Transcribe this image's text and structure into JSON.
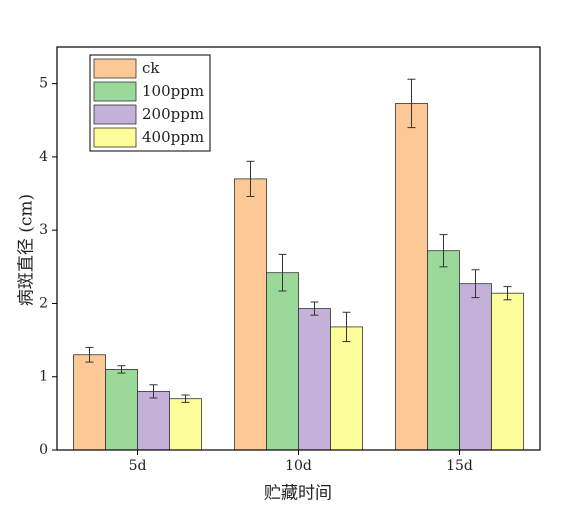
{
  "chart_data": {
    "type": "bar",
    "x_label": "贮藏时间",
    "y_label": "病斑直径 (cm)",
    "categories": [
      "5d",
      "10d",
      "15d"
    ],
    "series": [
      {
        "name": "ck",
        "color": "#fcc895",
        "values": [
          1.3,
          3.7,
          4.73
        ],
        "errors": [
          0.1,
          0.24,
          0.33
        ]
      },
      {
        "name": "100ppm",
        "color": "#9bd99b",
        "values": [
          1.1,
          2.42,
          2.72
        ],
        "errors": [
          0.05,
          0.25,
          0.22
        ]
      },
      {
        "name": "200ppm",
        "color": "#c3b1d9",
        "values": [
          0.8,
          1.93,
          2.27
        ],
        "errors": [
          0.09,
          0.09,
          0.19
        ]
      },
      {
        "name": "400ppm",
        "color": "#fdfd9a",
        "values": [
          0.7,
          1.68,
          2.14
        ],
        "errors": [
          0.05,
          0.2,
          0.09
        ]
      }
    ],
    "ylim": [
      0,
      5.5
    ],
    "yticks": [
      0,
      1,
      2,
      3,
      4,
      5
    ],
    "legend": "upper left"
  }
}
